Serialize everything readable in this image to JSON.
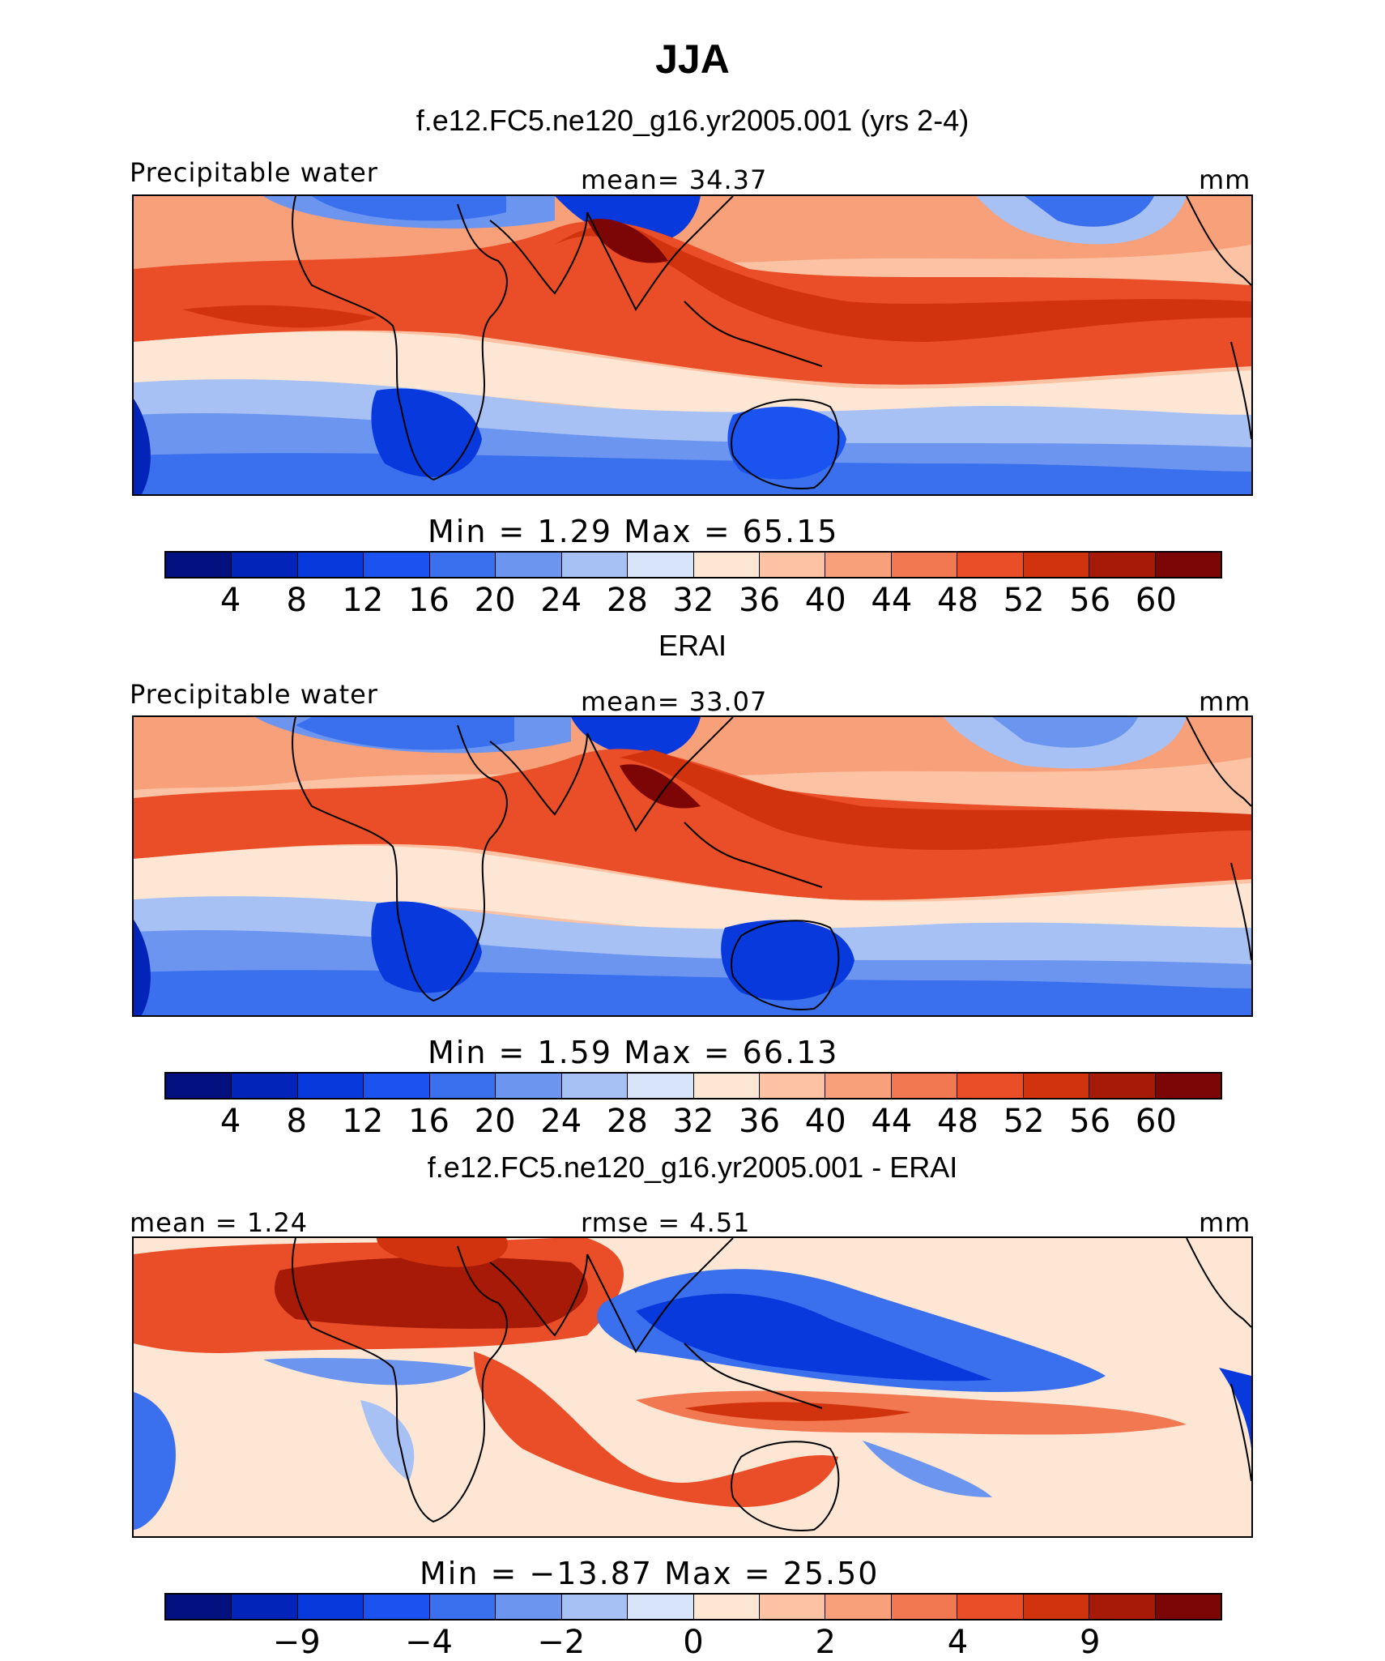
{
  "title": "JJA",
  "palette": {
    "abs": [
      "#03107f",
      "#0224b8",
      "#0839dc",
      "#1a53f0",
      "#3a70ed",
      "#6c95f0",
      "#a7c1f4",
      "#d7e4f9",
      "#fde6d4",
      "#fbc3a4",
      "#f7a07a",
      "#f27852",
      "#e94e28",
      "#d1330e",
      "#a81a08",
      "#7c0606"
    ],
    "diff": [
      "#03107f",
      "#0224b8",
      "#0839dc",
      "#1a53f0",
      "#3a70ed",
      "#6c95f0",
      "#a7c1f4",
      "#d7e4f9",
      "#fde6d4",
      "#fbc3a4",
      "#f7a07a",
      "#f27852",
      "#e94e28",
      "#d1330e",
      "#a81a08",
      "#7c0606"
    ]
  },
  "panels": {
    "model": {
      "title": "f.e12.FC5.ne120_g16.yr2005.001 (yrs 2-4)",
      "left_label": "Precipitable water",
      "center_label": "mean=   34.37",
      "units": "mm",
      "min_max": "Min  =    1.29  Max  =   65.15",
      "ticks": [
        "4",
        "8",
        "12",
        "16",
        "20",
        "24",
        "28",
        "32",
        "36",
        "40",
        "44",
        "48",
        "52",
        "56",
        "60"
      ]
    },
    "obs": {
      "title": "ERAI",
      "left_label": "Precipitable water",
      "center_label": "mean=   33.07",
      "units": "mm",
      "min_max": "Min  =    1.59  Max  =   66.13",
      "ticks": [
        "4",
        "8",
        "12",
        "16",
        "20",
        "24",
        "28",
        "32",
        "36",
        "40",
        "44",
        "48",
        "52",
        "56",
        "60"
      ]
    },
    "diff": {
      "title": "f.e12.FC5.ne120_g16.yr2005.001 - ERAI",
      "left_label": "mean  =    1.24",
      "center_label": "rmse  =    4.51",
      "units": "mm",
      "min_max": "Min  = −13.87  Max  =   25.50",
      "ticks": [
        "−9",
        "",
        "−4",
        "",
        "−2",
        "",
        "0",
        "",
        "2",
        "",
        "4",
        "",
        "9"
      ]
    }
  }
}
